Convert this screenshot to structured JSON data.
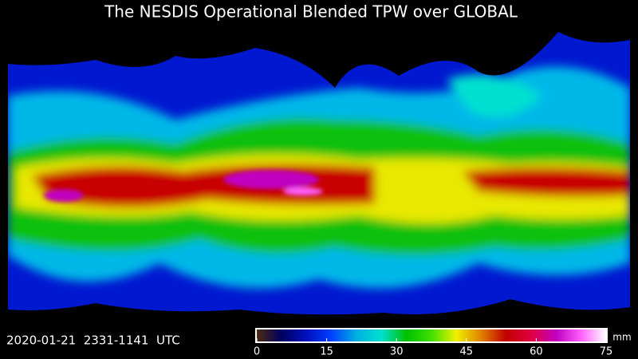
{
  "header": {
    "title": "The NESDIS Operational Blended TPW over GLOBAL"
  },
  "footer": {
    "timestamp": "2020-01-21  2331-1141  UTC"
  },
  "colorbar": {
    "lim": [
      0,
      75
    ],
    "ticks": [
      0,
      15,
      30,
      45,
      60,
      75
    ],
    "unit": "mm",
    "colors": [
      "#4a2a10",
      "#000060",
      "#0010c0",
      "#0040ff",
      "#00b0e0",
      "#00e0d0",
      "#00c000",
      "#40e000",
      "#f0f000",
      "#e08000",
      "#c00000",
      "#e00040",
      "#c000c0",
      "#ff60ff",
      "#ffffff"
    ]
  }
}
